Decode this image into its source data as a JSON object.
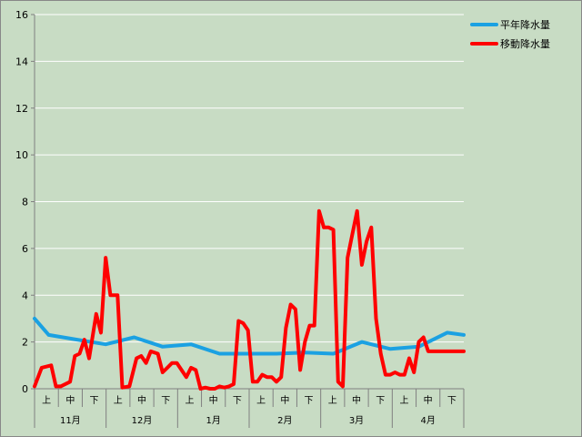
{
  "chart_data": {
    "type": "line",
    "ylim": [
      0,
      16
    ],
    "yticks": [
      "0",
      "2",
      "4",
      "6",
      "8",
      "10",
      "12",
      "14",
      "16"
    ],
    "grid": true,
    "legend_position": "top-right",
    "periods": [
      "上",
      "中",
      "下"
    ],
    "months": [
      "11月",
      "12月",
      "1月",
      "2月",
      "3月",
      "4月"
    ],
    "x_count": 182,
    "series": [
      {
        "name": "平年降水量",
        "color": "#1ba1e2",
        "x": [
          0,
          6,
          18,
          30,
          42,
          54,
          66,
          78,
          90,
          102,
          114,
          126,
          138,
          150,
          162,
          174,
          181
        ],
        "values": [
          3.0,
          2.3,
          2.1,
          1.9,
          2.2,
          1.8,
          1.9,
          1.5,
          1.5,
          1.5,
          1.55,
          1.5,
          2.0,
          1.7,
          1.8,
          2.4,
          2.3
        ]
      },
      {
        "name": "移動降水量",
        "color": "#ff0000",
        "x": [
          0,
          3,
          7,
          9,
          11,
          15,
          17,
          19,
          21,
          23,
          26,
          28,
          30,
          32,
          35,
          37,
          40,
          43,
          45,
          47,
          49,
          52,
          54,
          56,
          58,
          60,
          64,
          66,
          68,
          70,
          72,
          74,
          76,
          78,
          80,
          82,
          84,
          86,
          88,
          90,
          92,
          94,
          96,
          98,
          100,
          102,
          104,
          106,
          108,
          110,
          112,
          114,
          116,
          118,
          120,
          122,
          124,
          126,
          128,
          130,
          132,
          134,
          136,
          138,
          140,
          142,
          144,
          146,
          148,
          150,
          152,
          154,
          156,
          158,
          160,
          162,
          164,
          166,
          168,
          170,
          172,
          174,
          176,
          178,
          180,
          181
        ],
        "values": [
          0.1,
          0.9,
          1.0,
          0.1,
          0.1,
          0.3,
          1.4,
          1.5,
          2.1,
          1.3,
          3.2,
          2.4,
          5.6,
          4.0,
          4.0,
          0.05,
          0.1,
          1.3,
          1.4,
          1.1,
          1.6,
          1.5,
          0.7,
          0.9,
          1.1,
          1.1,
          0.5,
          0.9,
          0.8,
          0.0,
          0.05,
          0.0,
          0.0,
          0.1,
          0.05,
          0.1,
          0.2,
          2.9,
          2.8,
          2.5,
          0.3,
          0.3,
          0.6,
          0.5,
          0.5,
          0.3,
          0.5,
          2.6,
          3.6,
          3.4,
          0.8,
          2.0,
          2.7,
          2.7,
          7.6,
          6.9,
          6.9,
          6.8,
          0.3,
          0.1,
          5.6,
          6.6,
          7.6,
          5.3,
          6.3,
          6.9,
          3.0,
          1.5,
          0.6,
          0.6,
          0.7,
          0.6,
          0.6,
          1.3,
          0.7,
          2.0,
          2.2,
          1.6,
          1.6,
          1.6,
          1.6,
          1.6,
          1.6,
          1.6,
          1.6,
          1.6
        ]
      }
    ]
  }
}
